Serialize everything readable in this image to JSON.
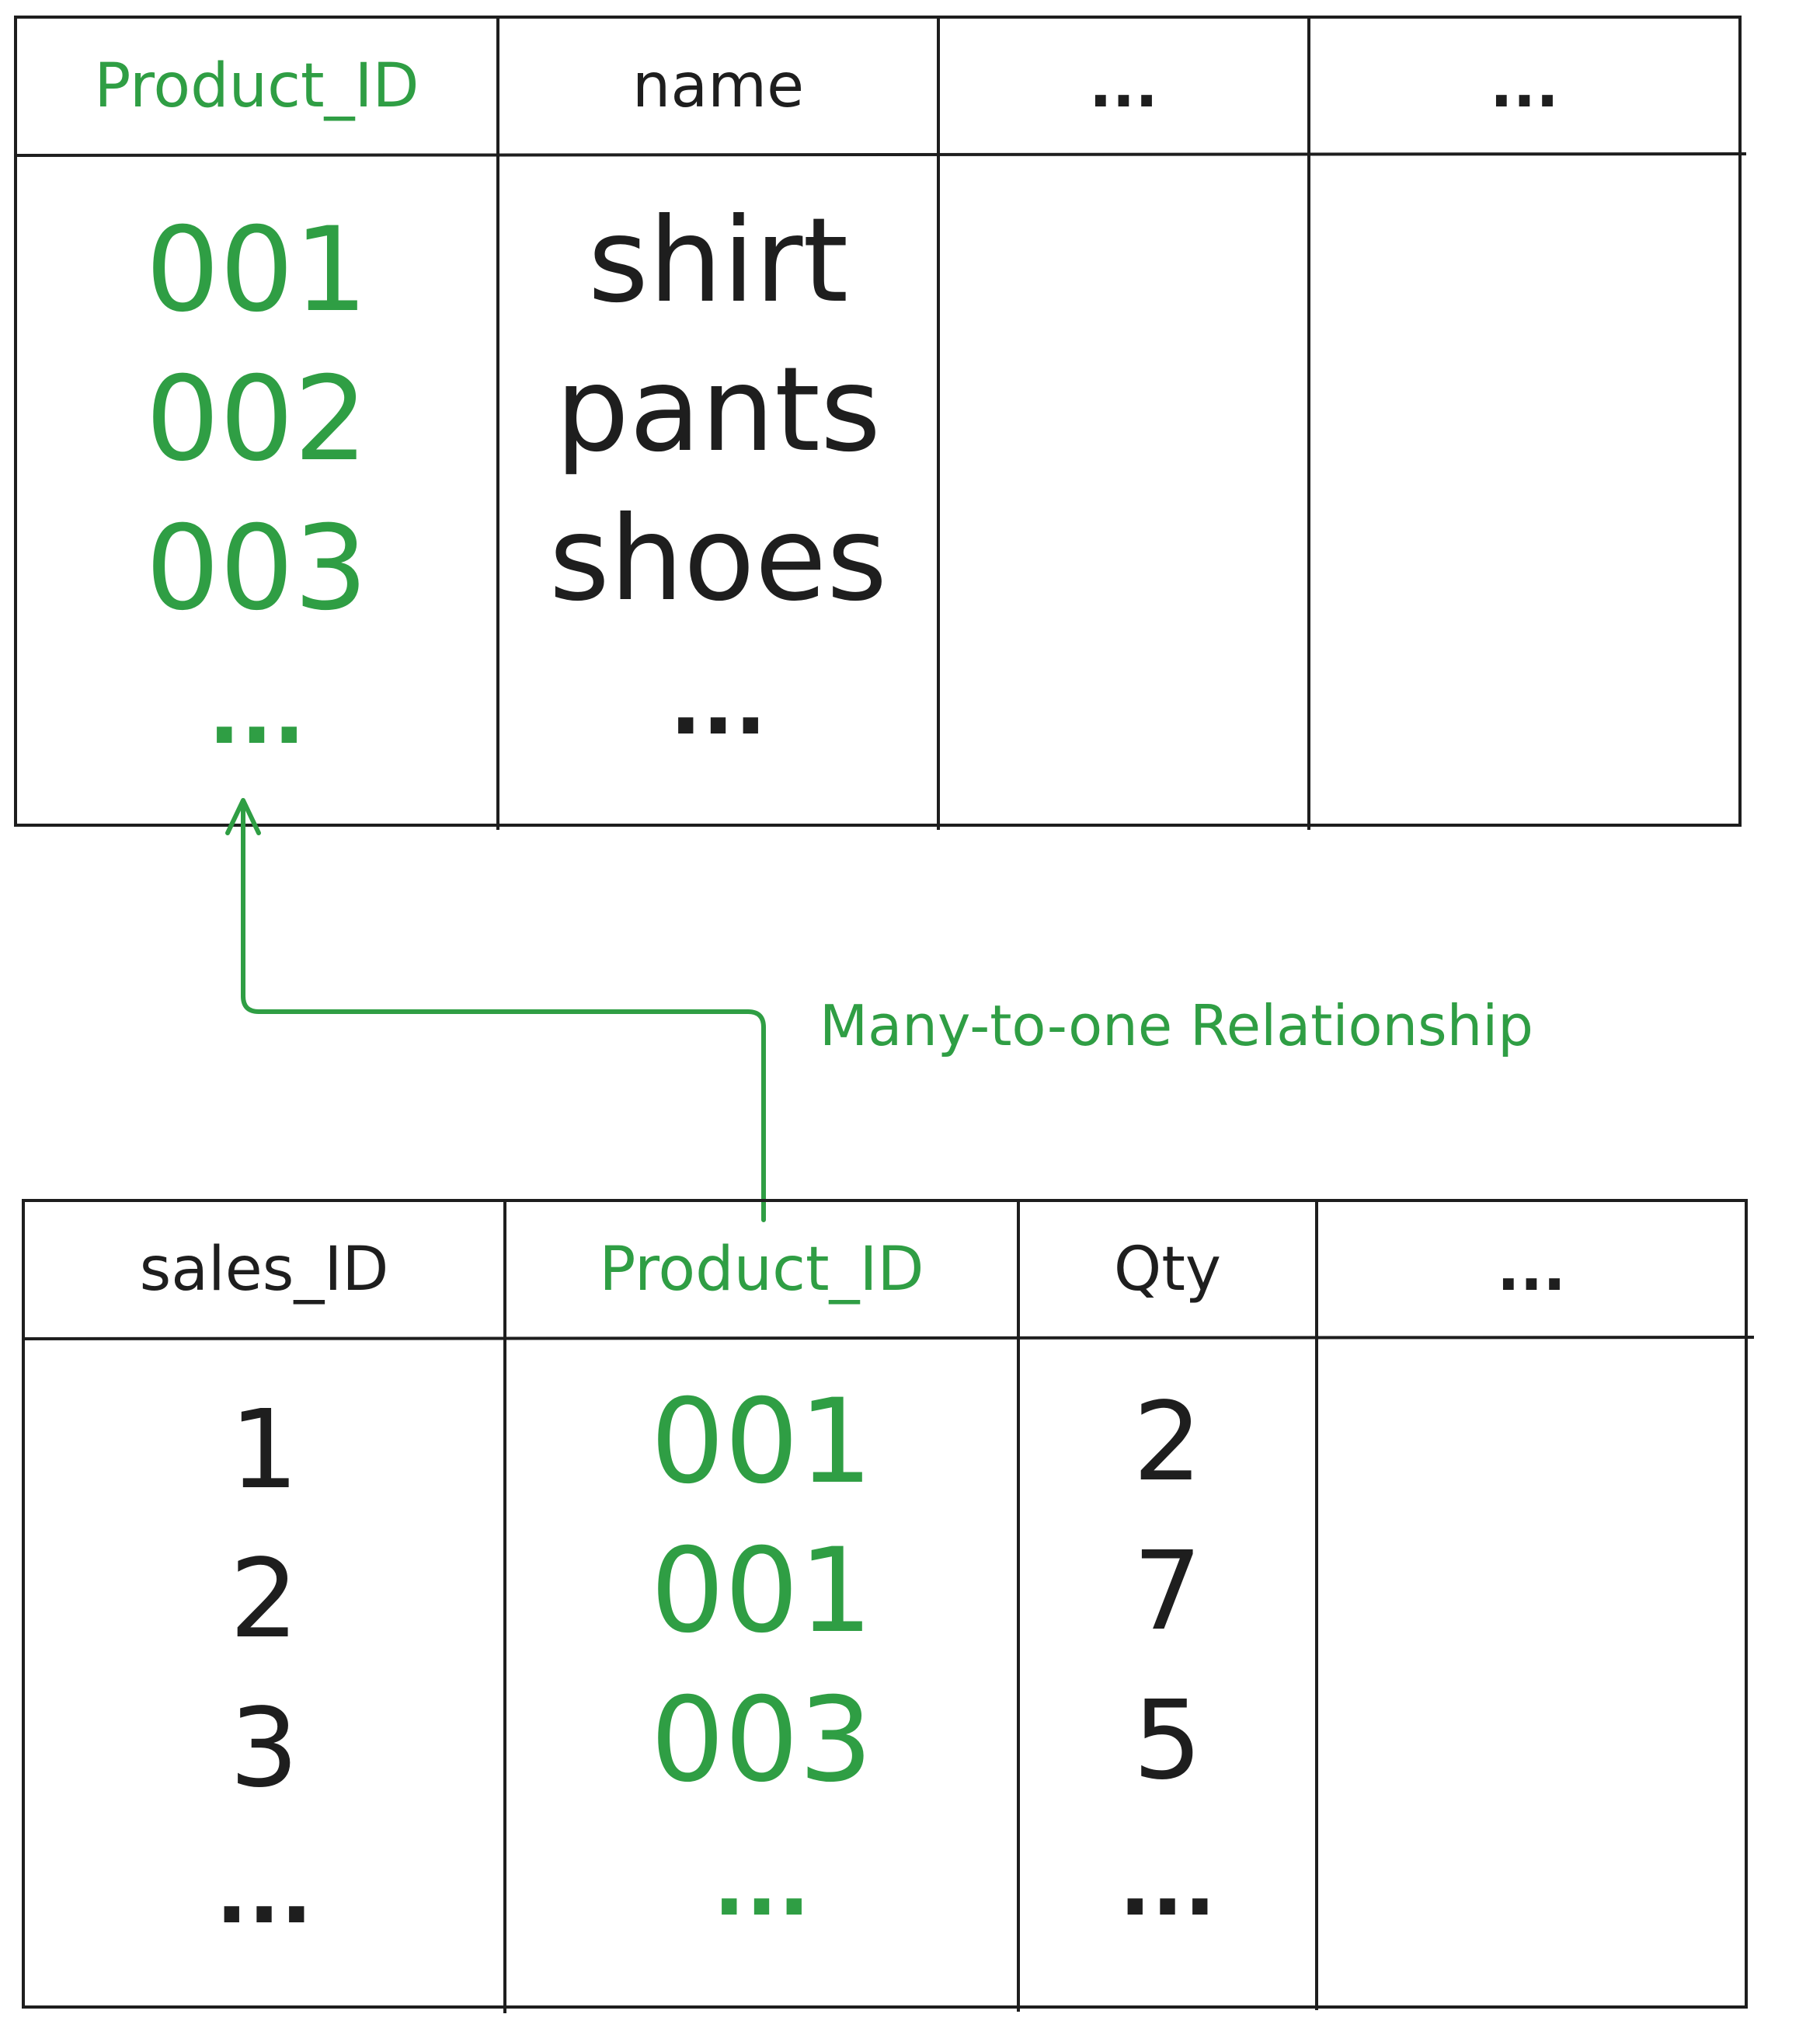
{
  "colors": {
    "key": "#2f9e44",
    "text": "#1e1e1e",
    "line": "#1e1e1e",
    "background": "#ffffff"
  },
  "products_table": {
    "headers": [
      "Product_ID",
      "name",
      "...",
      "..."
    ],
    "columns": [
      [
        "001",
        "002",
        "003",
        "..."
      ],
      [
        "shirt",
        "pants",
        "shoes",
        "..."
      ],
      [],
      []
    ]
  },
  "sales_table": {
    "headers": [
      "sales_ID",
      "Product_ID",
      "Qty",
      "..."
    ],
    "columns": [
      [
        "1",
        "2",
        "3",
        "..."
      ],
      [
        "001",
        "001",
        "003",
        "..."
      ],
      [
        "2",
        "7",
        "5",
        "..."
      ],
      []
    ]
  },
  "relationship": {
    "label": "Many-to-one Relationship"
  }
}
